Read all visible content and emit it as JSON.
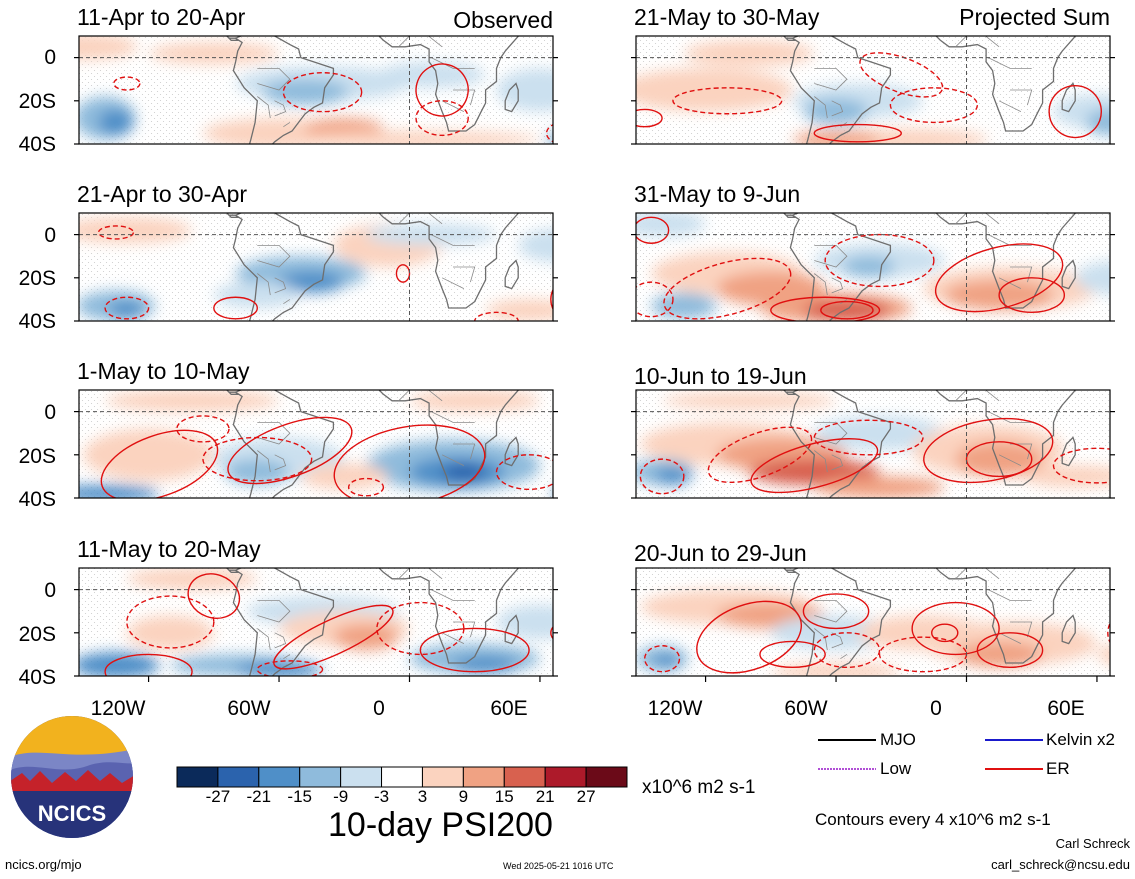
{
  "headers": {
    "observed": "Observed",
    "projected": "Projected Sum"
  },
  "panels": [
    {
      "title": "11-Apr to 20-Apr",
      "kind": "observed"
    },
    {
      "title": "21-Apr to 30-Apr",
      "kind": "observed"
    },
    {
      "title": "1-May to 10-May",
      "kind": "observed"
    },
    {
      "title": "11-May to 20-May",
      "kind": "observed"
    },
    {
      "title": "21-May to 30-May",
      "kind": "projected"
    },
    {
      "title": "31-May to 9-Jun",
      "kind": "projected"
    },
    {
      "title": "10-Jun to 19-Jun",
      "kind": "projected"
    },
    {
      "title": "20-Jun to 29-Jun",
      "kind": "projected"
    }
  ],
  "lat_labels": [
    "0",
    "20S",
    "40S"
  ],
  "lon_labels": [
    "120W",
    "60W",
    "0",
    "60E"
  ],
  "legend": {
    "items": [
      {
        "label": "MJO",
        "color": "#000000"
      },
      {
        "label": "Kelvin x2",
        "color": "#1a1acc"
      },
      {
        "label": "Low",
        "color": "#b14fd6"
      },
      {
        "label": "ER",
        "color": "#e01010"
      }
    ]
  },
  "colorbar": {
    "ticks": [
      "-27",
      "-21",
      "-15",
      "-9",
      "-3",
      "3",
      "9",
      "15",
      "21",
      "27"
    ],
    "colors": [
      "#0b2a5a",
      "#2b63ad",
      "#4f8fc8",
      "#8fbbdc",
      "#cbe0ef",
      "#ffffff",
      "#fbd3bf",
      "#f0a283",
      "#d8614f",
      "#ad1a2a",
      "#6b0a18"
    ],
    "units": "x10^6 m2 s-1"
  },
  "title": "10-day PSI200",
  "contour_note": "Contours every 4 x10^6 m2 s-1",
  "logo": {
    "text": "NCICS"
  },
  "footer": {
    "url": "ncics.org/mjo",
    "timestamp": "Wed 2025-05-21 1016 UTC",
    "author": "Carl Schreck",
    "email": "carl_schreck@ncsu.edu"
  }
}
